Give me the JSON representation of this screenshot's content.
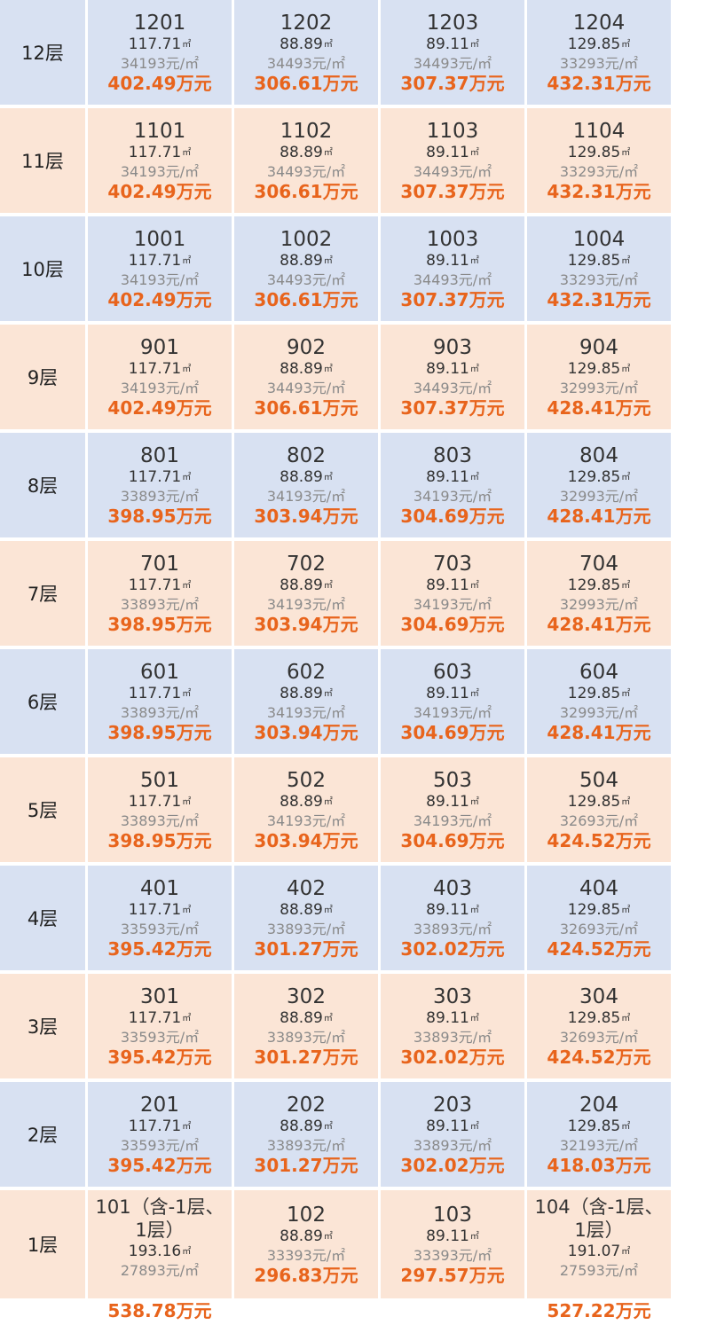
{
  "area_unit": "㎡",
  "floors": [
    {
      "label": "12层",
      "theme": "blue",
      "units": [
        {
          "no": "1201",
          "area": "117.71",
          "price": "34193元/㎡",
          "total": "402.49万元"
        },
        {
          "no": "1202",
          "area": "88.89",
          "price": "34493元/㎡",
          "total": "306.61万元"
        },
        {
          "no": "1203",
          "area": "89.11",
          "price": "34493元/㎡",
          "total": "307.37万元"
        },
        {
          "no": "1204",
          "area": "129.85",
          "price": "33293元/㎡",
          "total": "432.31万元"
        }
      ]
    },
    {
      "label": "11层",
      "theme": "peach",
      "units": [
        {
          "no": "1101",
          "area": "117.71",
          "price": "34193元/㎡",
          "total": "402.49万元"
        },
        {
          "no": "1102",
          "area": "88.89",
          "price": "34493元/㎡",
          "total": "306.61万元"
        },
        {
          "no": "1103",
          "area": "89.11",
          "price": "34493元/㎡",
          "total": "307.37万元"
        },
        {
          "no": "1104",
          "area": "129.85",
          "price": "33293元/㎡",
          "total": "432.31万元"
        }
      ]
    },
    {
      "label": "10层",
      "theme": "blue",
      "units": [
        {
          "no": "1001",
          "area": "117.71",
          "price": "34193元/㎡",
          "total": "402.49万元"
        },
        {
          "no": "1002",
          "area": "88.89",
          "price": "34493元/㎡",
          "total": "306.61万元"
        },
        {
          "no": "1003",
          "area": "89.11",
          "price": "34493元/㎡",
          "total": "307.37万元"
        },
        {
          "no": "1004",
          "area": "129.85",
          "price": "33293元/㎡",
          "total": "432.31万元"
        }
      ]
    },
    {
      "label": "9层",
      "theme": "peach",
      "units": [
        {
          "no": "901",
          "area": "117.71",
          "price": "34193元/㎡",
          "total": "402.49万元"
        },
        {
          "no": "902",
          "area": "88.89",
          "price": "34493元/㎡",
          "total": "306.61万元"
        },
        {
          "no": "903",
          "area": "89.11",
          "price": "34493元/㎡",
          "total": "307.37万元"
        },
        {
          "no": "904",
          "area": "129.85",
          "price": "32993元/㎡",
          "total": "428.41万元"
        }
      ]
    },
    {
      "label": "8层",
      "theme": "blue",
      "units": [
        {
          "no": "801",
          "area": "117.71",
          "price": "33893元/㎡",
          "total": "398.95万元"
        },
        {
          "no": "802",
          "area": "88.89",
          "price": "34193元/㎡",
          "total": "303.94万元"
        },
        {
          "no": "803",
          "area": "89.11",
          "price": "34193元/㎡",
          "total": "304.69万元"
        },
        {
          "no": "804",
          "area": "129.85",
          "price": "32993元/㎡",
          "total": "428.41万元"
        }
      ]
    },
    {
      "label": "7层",
      "theme": "peach",
      "units": [
        {
          "no": "701",
          "area": "117.71",
          "price": "33893元/㎡",
          "total": "398.95万元"
        },
        {
          "no": "702",
          "area": "88.89",
          "price": "34193元/㎡",
          "total": "303.94万元"
        },
        {
          "no": "703",
          "area": "89.11",
          "price": "34193元/㎡",
          "total": "304.69万元"
        },
        {
          "no": "704",
          "area": "129.85",
          "price": "32993元/㎡",
          "total": "428.41万元"
        }
      ]
    },
    {
      "label": "6层",
      "theme": "blue",
      "units": [
        {
          "no": "601",
          "area": "117.71",
          "price": "33893元/㎡",
          "total": "398.95万元"
        },
        {
          "no": "602",
          "area": "88.89",
          "price": "34193元/㎡",
          "total": "303.94万元"
        },
        {
          "no": "603",
          "area": "89.11",
          "price": "34193元/㎡",
          "total": "304.69万元"
        },
        {
          "no": "604",
          "area": "129.85",
          "price": "32993元/㎡",
          "total": "428.41万元"
        }
      ]
    },
    {
      "label": "5层",
      "theme": "peach",
      "units": [
        {
          "no": "501",
          "area": "117.71",
          "price": "33893元/㎡",
          "total": "398.95万元"
        },
        {
          "no": "502",
          "area": "88.89",
          "price": "34193元/㎡",
          "total": "303.94万元"
        },
        {
          "no": "503",
          "area": "89.11",
          "price": "34193元/㎡",
          "total": "304.69万元"
        },
        {
          "no": "504",
          "area": "129.85",
          "price": "32693元/㎡",
          "total": "424.52万元"
        }
      ]
    },
    {
      "label": "4层",
      "theme": "blue",
      "units": [
        {
          "no": "401",
          "area": "117.71",
          "price": "33593元/㎡",
          "total": "395.42万元"
        },
        {
          "no": "402",
          "area": "88.89",
          "price": "33893元/㎡",
          "total": "301.27万元"
        },
        {
          "no": "403",
          "area": "89.11",
          "price": "33893元/㎡",
          "total": "302.02万元"
        },
        {
          "no": "404",
          "area": "129.85",
          "price": "32693元/㎡",
          "total": "424.52万元"
        }
      ]
    },
    {
      "label": "3层",
      "theme": "peach",
      "units": [
        {
          "no": "301",
          "area": "117.71",
          "price": "33593元/㎡",
          "total": "395.42万元"
        },
        {
          "no": "302",
          "area": "88.89",
          "price": "33893元/㎡",
          "total": "301.27万元"
        },
        {
          "no": "303",
          "area": "89.11",
          "price": "33893元/㎡",
          "total": "302.02万元"
        },
        {
          "no": "304",
          "area": "129.85",
          "price": "32693元/㎡",
          "total": "424.52万元"
        }
      ]
    },
    {
      "label": "2层",
      "theme": "blue",
      "units": [
        {
          "no": "201",
          "area": "117.71",
          "price": "33593元/㎡",
          "total": "395.42万元"
        },
        {
          "no": "202",
          "area": "88.89",
          "price": "33893元/㎡",
          "total": "301.27万元"
        },
        {
          "no": "203",
          "area": "89.11",
          "price": "33893元/㎡",
          "total": "302.02万元"
        },
        {
          "no": "204",
          "area": "129.85",
          "price": "32193元/㎡",
          "total": "418.03万元"
        }
      ]
    },
    {
      "label": "1层",
      "theme": "peach",
      "units": [
        {
          "no": "101（含-1层、1层）",
          "area": "193.16",
          "price": "27893元/㎡",
          "total": "538.78万元"
        },
        {
          "no": "102",
          "area": "88.89",
          "price": "33393元/㎡",
          "total": "296.83万元"
        },
        {
          "no": "103",
          "area": "89.11",
          "price": "33393元/㎡",
          "total": "297.57万元"
        },
        {
          "no": "104（含-1层、1层）",
          "area": "191.07",
          "price": "27593元/㎡",
          "total": "527.22万元"
        }
      ]
    }
  ]
}
